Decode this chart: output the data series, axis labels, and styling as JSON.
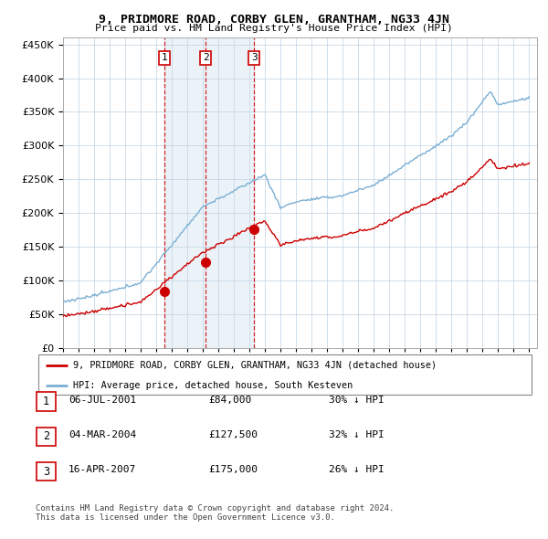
{
  "title": "9, PRIDMORE ROAD, CORBY GLEN, GRANTHAM, NG33 4JN",
  "subtitle": "Price paid vs. HM Land Registry's House Price Index (HPI)",
  "ylim": [
    0,
    460000
  ],
  "yticks": [
    0,
    50000,
    100000,
    150000,
    200000,
    250000,
    300000,
    350000,
    400000,
    450000
  ],
  "xlim_start": 1995.0,
  "xlim_end": 2025.5,
  "hpi_color": "#7bafd4",
  "hpi_fill_color": "#d8e8f3",
  "price_color": "#cc0000",
  "vline_color": "#cc0000",
  "background_color": "#ffffff",
  "grid_color": "#c8d8e8",
  "sales": [
    {
      "year": 2001.54,
      "price": 84000,
      "label": "1"
    },
    {
      "year": 2004.17,
      "price": 127500,
      "label": "2"
    },
    {
      "year": 2007.29,
      "price": 175000,
      "label": "3"
    }
  ],
  "table_rows": [
    {
      "num": "1",
      "date": "06-JUL-2001",
      "price": "£84,000",
      "hpi": "30% ↓ HPI"
    },
    {
      "num": "2",
      "date": "04-MAR-2004",
      "price": "£127,500",
      "hpi": "32% ↓ HPI"
    },
    {
      "num": "3",
      "date": "16-APR-2007",
      "price": "£175,000",
      "hpi": "26% ↓ HPI"
    }
  ],
  "legend_line1": "9, PRIDMORE ROAD, CORBY GLEN, GRANTHAM, NG33 4JN (detached house)",
  "legend_line2": "HPI: Average price, detached house, South Kesteven",
  "footer": "Contains HM Land Registry data © Crown copyright and database right 2024.\nThis data is licensed under the Open Government Licence v3.0."
}
